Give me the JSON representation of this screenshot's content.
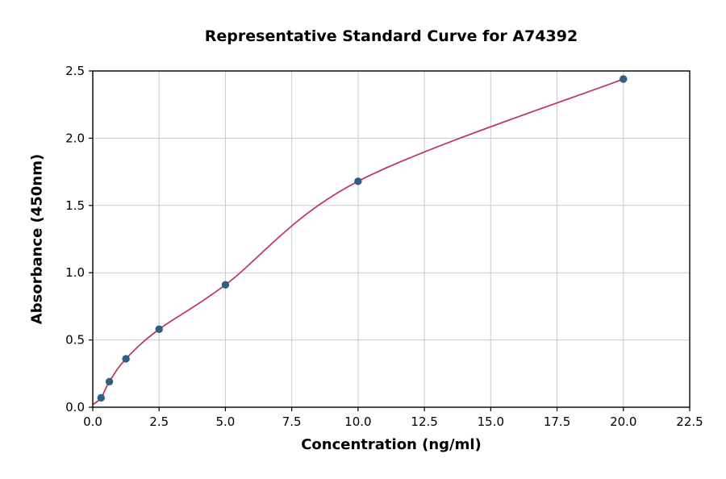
{
  "chart_data": {
    "type": "scatter",
    "title": "Representative Standard Curve for A74392",
    "xlabel": "Concentration (ng/ml)",
    "ylabel": "Absorbance (450nm)",
    "xlim": [
      0,
      22.5
    ],
    "ylim": [
      0,
      2.5
    ],
    "x_ticks": [
      0.0,
      2.5,
      5.0,
      7.5,
      10.0,
      12.5,
      15.0,
      17.5,
      20.0,
      22.5
    ],
    "x_tick_labels": [
      "0.0",
      "2.5",
      "5.0",
      "7.5",
      "10.0",
      "12.5",
      "15.0",
      "17.5",
      "20.0",
      "22.5"
    ],
    "y_ticks": [
      0.0,
      0.5,
      1.0,
      1.5,
      2.0,
      2.5
    ],
    "y_tick_labels": [
      "0.0",
      "0.5",
      "1.0",
      "1.5",
      "2.0",
      "2.5"
    ],
    "grid": true,
    "legend": "none",
    "series": [
      {
        "name": "standard-points",
        "points": [
          [
            0.313,
            0.07
          ],
          [
            0.625,
            0.19
          ],
          [
            1.25,
            0.36
          ],
          [
            2.5,
            0.58
          ],
          [
            5.0,
            0.91
          ],
          [
            10.0,
            1.68
          ],
          [
            20.0,
            2.44
          ]
        ]
      }
    ],
    "fit_curve_start": [
      0.0,
      0.02
    ],
    "colors": {
      "point": "#2e5e80",
      "curve": "#c23a64",
      "grid": "#cccccc",
      "axis": "#000000",
      "text": "#000000"
    }
  }
}
